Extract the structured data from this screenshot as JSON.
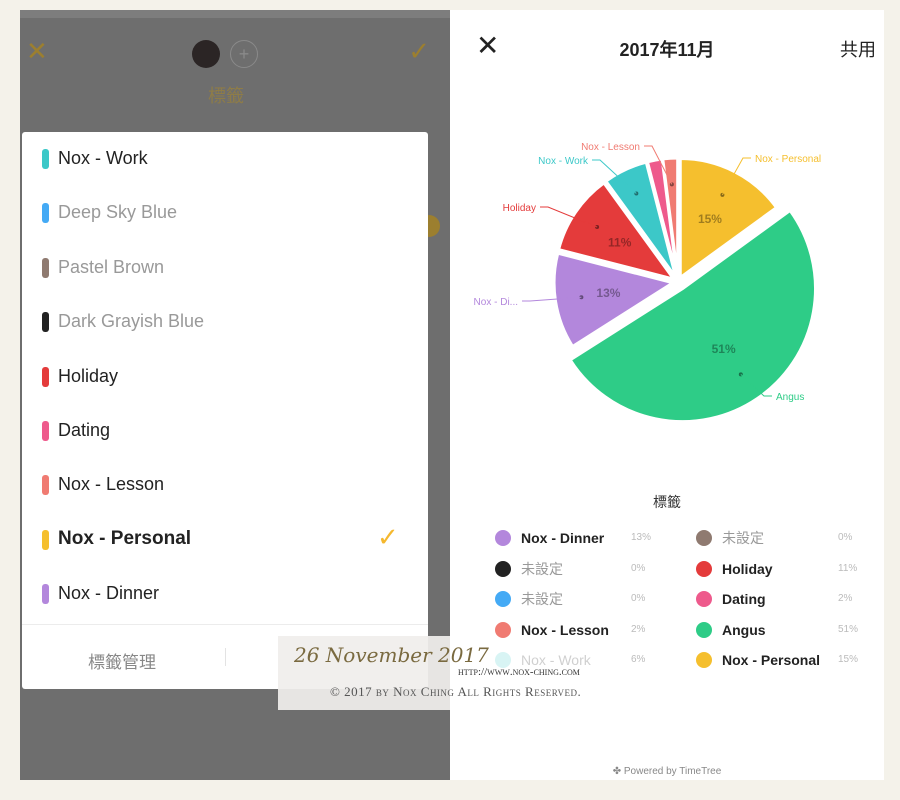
{
  "left_screen": {
    "background_title": "標籤",
    "label_menu": {
      "items": [
        {
          "label": "Nox - Work",
          "color": "#3cc8c8",
          "style": "normal"
        },
        {
          "label": "Deep Sky Blue",
          "color": "#44aaf5",
          "style": "muted"
        },
        {
          "label": "Pastel Brown",
          "color": "#8f7a70",
          "style": "muted"
        },
        {
          "label": "Dark Grayish Blue",
          "color": "#222222",
          "style": "muted"
        },
        {
          "label": "Holiday",
          "color": "#e43b3b",
          "style": "normal"
        },
        {
          "label": "Dating",
          "color": "#ee5a8c",
          "style": "normal"
        },
        {
          "label": "Nox - Lesson",
          "color": "#f07b72",
          "style": "normal"
        },
        {
          "label": "Nox - Personal",
          "color": "#f5bf2e",
          "style": "bold",
          "selected": true
        },
        {
          "label": "Nox - Dinner",
          "color": "#b387dc",
          "style": "normal"
        }
      ],
      "manage_label": "標籤管理"
    }
  },
  "right_screen": {
    "title": "2017年11月",
    "share_label": "共用",
    "legend_title": "標籤",
    "powered_by": "Powered by TimeTree"
  },
  "chart_data": {
    "type": "pie",
    "slices": [
      {
        "name": "Nox - Personal",
        "value": 15,
        "label": "15%",
        "color": "#f5bf2e",
        "callout": "Nox - Personal"
      },
      {
        "name": "Angus",
        "value": 51,
        "label": "51%",
        "color": "#2ecc87",
        "callout": "Angus"
      },
      {
        "name": "Nox - Dinner",
        "value": 13,
        "label": "13%",
        "color": "#b387dc",
        "callout": "Nox - Di..."
      },
      {
        "name": "Holiday",
        "value": 11,
        "label": "11%",
        "color": "#e43b3b",
        "callout": "Holiday"
      },
      {
        "name": "Nox - Work",
        "value": 6,
        "label": "",
        "color": "#3cc8c8",
        "callout": "Nox - Work"
      },
      {
        "name": "Dating",
        "value": 2,
        "label": "",
        "color": "#ee5a8c",
        "callout": ""
      },
      {
        "name": "Nox - Lesson",
        "value": 2,
        "label": "",
        "color": "#f07b72",
        "callout": "Nox - Lesson"
      }
    ],
    "legend": [
      {
        "name": "Nox - Dinner",
        "pct": "13%",
        "color": "#b387dc",
        "style": "b"
      },
      {
        "name": "未設定",
        "pct": "0%",
        "color": "#8f7a70",
        "style": "m"
      },
      {
        "name": "未設定",
        "pct": "0%",
        "color": "#222222",
        "style": "m"
      },
      {
        "name": "Holiday",
        "pct": "11%",
        "color": "#e43b3b",
        "style": "b"
      },
      {
        "name": "未設定",
        "pct": "0%",
        "color": "#44aaf5",
        "style": "m"
      },
      {
        "name": "Dating",
        "pct": "2%",
        "color": "#ee5a8c",
        "style": "b"
      },
      {
        "name": "Nox - Lesson",
        "pct": "2%",
        "color": "#f07b72",
        "style": "b"
      },
      {
        "name": "Angus",
        "pct": "51%",
        "color": "#2ecc87",
        "style": "b"
      },
      {
        "name": "Nox - Work",
        "pct": "6%",
        "color": "#d8f4f4",
        "style": "faint"
      },
      {
        "name": "Nox - Personal",
        "pct": "15%",
        "color": "#f5bf2e",
        "style": "b"
      }
    ]
  },
  "watermark": {
    "date": "26 November 2017",
    "url": "http://www.nox-ching.com",
    "copyright": "© 2017 by Nox Ching All Rights Reserved."
  }
}
